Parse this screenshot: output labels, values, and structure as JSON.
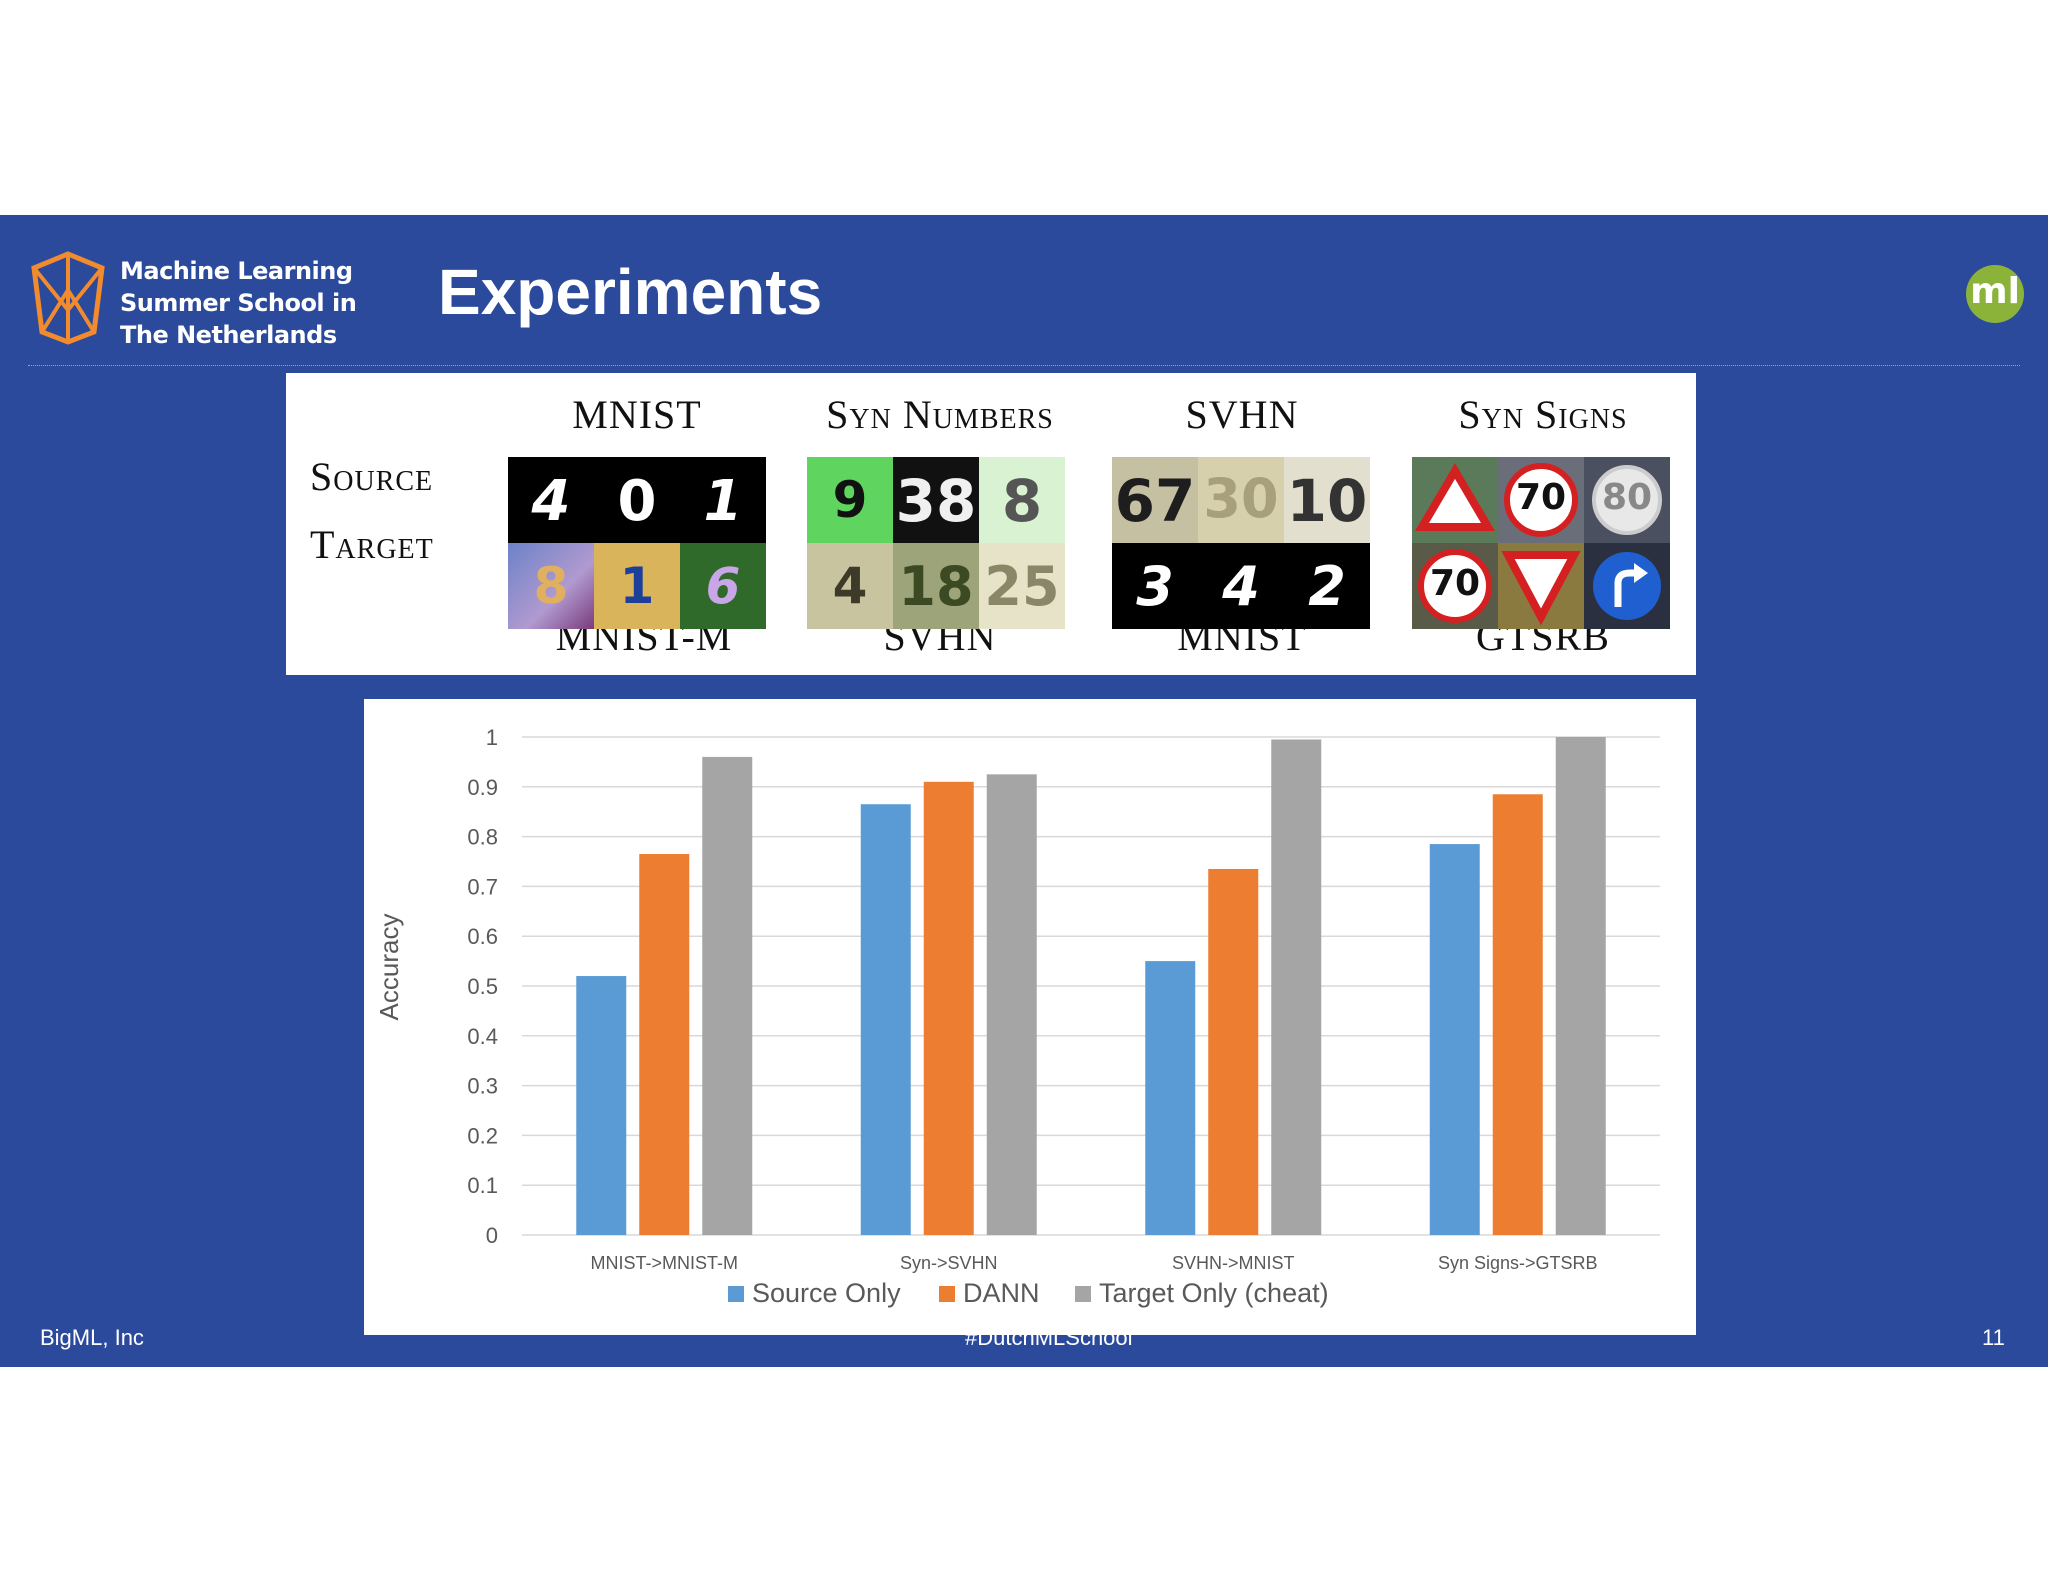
{
  "header": {
    "logo_lines": [
      "Machine Learning",
      "Summer School in",
      "The Netherlands"
    ],
    "title": "Experiments",
    "badge": "ml"
  },
  "datasets": {
    "row_labels": {
      "source": "Source",
      "target": "Target"
    },
    "pairs": [
      {
        "source": "MNIST",
        "target": "MNIST-M"
      },
      {
        "source": "Syn Numbers",
        "target": "SVHN"
      },
      {
        "source": "SVHN",
        "target": "MNIST"
      },
      {
        "source": "Syn Signs",
        "target": "GTSRB"
      }
    ],
    "samples": {
      "mnist": [
        "4",
        "0",
        "1"
      ],
      "mnist_m": [
        "8",
        "1",
        "6"
      ],
      "syn_numbers": [
        "9",
        "38",
        "8"
      ],
      "svhn": [
        "4",
        "18",
        "25"
      ],
      "svhn_src": [
        "67",
        "30",
        "10"
      ],
      "mnist_tgt": [
        "3",
        "4",
        "2"
      ],
      "syn_signs": [
        "",
        "70",
        "80"
      ],
      "gtsrb": [
        "70",
        "",
        ""
      ]
    }
  },
  "chart_data": {
    "type": "bar",
    "categories": [
      "MNIST->MNIST-M",
      "Syn->SVHN",
      "SVHN->MNIST",
      "Syn Signs->GTSRB"
    ],
    "series": [
      {
        "name": "Source Only",
        "values": [
          0.52,
          0.865,
          0.55,
          0.785
        ],
        "color": "#5b9bd5"
      },
      {
        "name": "DANN",
        "values": [
          0.765,
          0.91,
          0.735,
          0.885
        ],
        "color": "#ed7d31"
      },
      {
        "name": "Target Only (cheat)",
        "values": [
          0.96,
          0.925,
          0.995,
          1.0
        ],
        "color": "#a5a5a5"
      }
    ],
    "ylabel": "Accuracy",
    "yticks": [
      "0",
      "0.1",
      "0.2",
      "0.3",
      "0.4",
      "0.5",
      "0.6",
      "0.7",
      "0.8",
      "0.9",
      "1"
    ],
    "ylim": [
      0,
      1
    ],
    "grid": true,
    "legend": "bottom"
  },
  "footer": {
    "left": "BigML, Inc",
    "center": "#DutchMLSchool",
    "page": "11"
  }
}
